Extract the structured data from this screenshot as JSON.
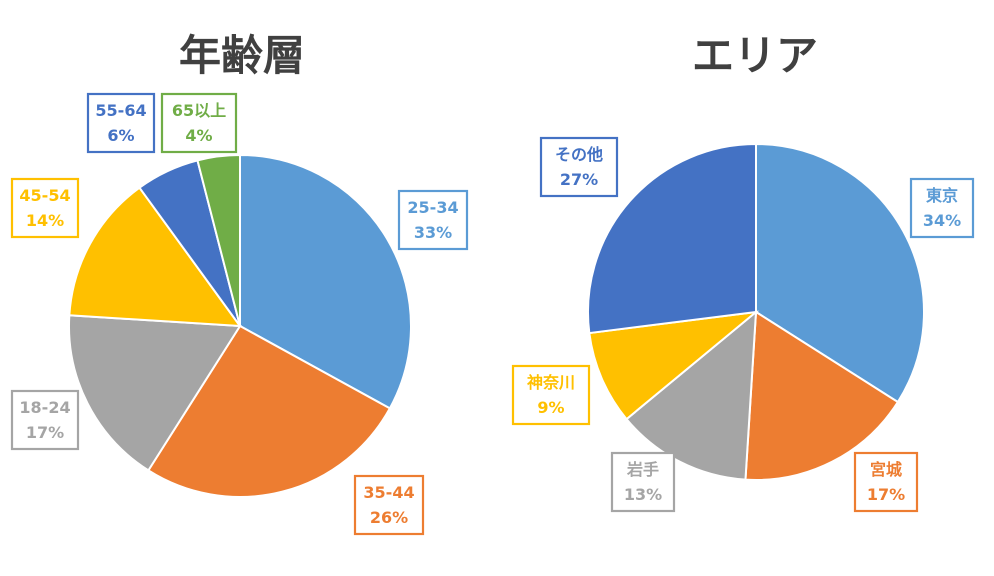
{
  "chart_data": [
    {
      "type": "pie",
      "title": "年齢層",
      "labels": [
        "25-34",
        "35-44",
        "18-24",
        "45-54",
        "55-64",
        "65以上"
      ],
      "values": [
        33,
        26,
        17,
        14,
        6,
        4
      ],
      "value_labels": [
        "33%",
        "26%",
        "17%",
        "14%",
        "6%",
        "4%"
      ],
      "colors": [
        "#5B9BD5",
        "#ED7D31",
        "#A5A5A5",
        "#FFC000",
        "#4472C4",
        "#70AD47"
      ]
    },
    {
      "type": "pie",
      "title": "エリア",
      "labels": [
        "東京",
        "宮城",
        "岩手",
        "神奈川",
        "その他"
      ],
      "values": [
        34,
        17,
        13,
        9,
        27
      ],
      "value_labels": [
        "34%",
        "17%",
        "13%",
        "9%",
        "27%"
      ],
      "colors": [
        "#5B9BD5",
        "#ED7D31",
        "#A5A5A5",
        "#FFC000",
        "#4472C4"
      ]
    }
  ]
}
